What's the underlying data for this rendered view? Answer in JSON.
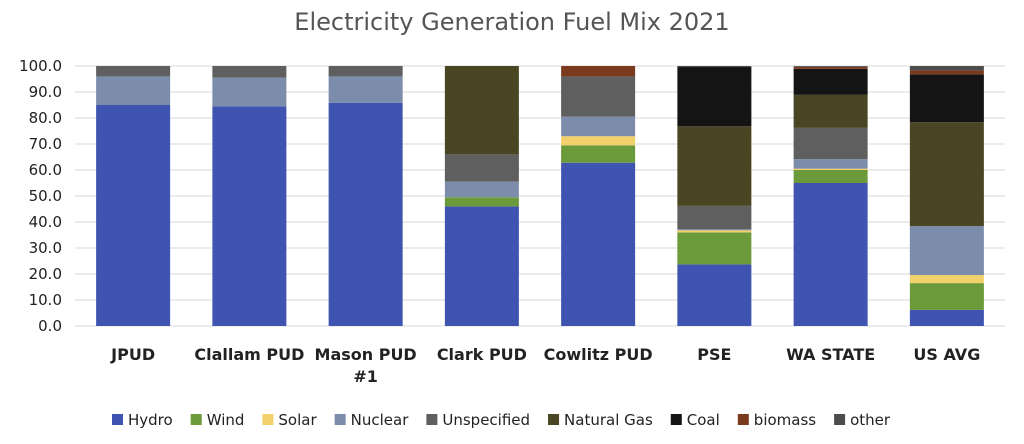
{
  "chart_data": {
    "type": "bar",
    "stacked": true,
    "title": "Electricity Generation Fuel Mix 2021",
    "xlabel": "",
    "ylabel": "",
    "ylim": [
      0,
      100
    ],
    "yticks": [
      "0.0",
      "10.0",
      "20.0",
      "30.0",
      "40.0",
      "50.0",
      "60.0",
      "70.0",
      "80.0",
      "90.0",
      "100.0"
    ],
    "grid": true,
    "legend_position": "bottom",
    "categories": [
      [
        "JPUD"
      ],
      [
        "Clallam PUD"
      ],
      [
        "Mason PUD",
        "#1"
      ],
      [
        "Clark PUD"
      ],
      [
        "Cowlitz PUD"
      ],
      [
        "PSE"
      ],
      [
        "WA STATE"
      ],
      [
        "US AVG"
      ]
    ],
    "series": [
      {
        "name": "Hydro",
        "color": "#3f54b0",
        "values": [
          85.0,
          84.5,
          85.8,
          46.0,
          62.8,
          23.7,
          55.0,
          6.2
        ]
      },
      {
        "name": "Wind",
        "color": "#6a9a3a",
        "values": [
          0.0,
          0.0,
          0.0,
          3.5,
          6.7,
          12.3,
          5.0,
          10.3
        ]
      },
      {
        "name": "Solar",
        "color": "#f2d06b",
        "values": [
          0.0,
          0.0,
          0.0,
          0.0,
          3.5,
          0.8,
          0.5,
          3.1
        ]
      },
      {
        "name": "Nuclear",
        "color": "#7c8cab",
        "values": [
          11.0,
          11.0,
          10.2,
          6.0,
          7.5,
          0.4,
          3.7,
          18.8
        ]
      },
      {
        "name": "Unspecified",
        "color": "#5f5f5f",
        "values": [
          4.0,
          4.5,
          4.0,
          10.5,
          15.5,
          9.0,
          12.0,
          0.0
        ]
      },
      {
        "name": "Natural Gas",
        "color": "#4a4623",
        "values": [
          0.0,
          0.0,
          0.0,
          34.0,
          0.0,
          30.6,
          12.7,
          40.0
        ]
      },
      {
        "name": "Coal",
        "color": "#141414",
        "values": [
          0.0,
          0.0,
          0.0,
          0.0,
          0.0,
          22.8,
          10.0,
          18.4
        ]
      },
      {
        "name": "biomass",
        "color": "#7a3a1e",
        "values": [
          0.0,
          0.0,
          0.0,
          0.0,
          4.0,
          0.0,
          0.8,
          1.5
        ]
      },
      {
        "name": "other",
        "color": "#4d4d4d",
        "values": [
          0.0,
          0.0,
          0.0,
          0.0,
          0.0,
          0.4,
          0.3,
          1.7
        ]
      }
    ]
  }
}
